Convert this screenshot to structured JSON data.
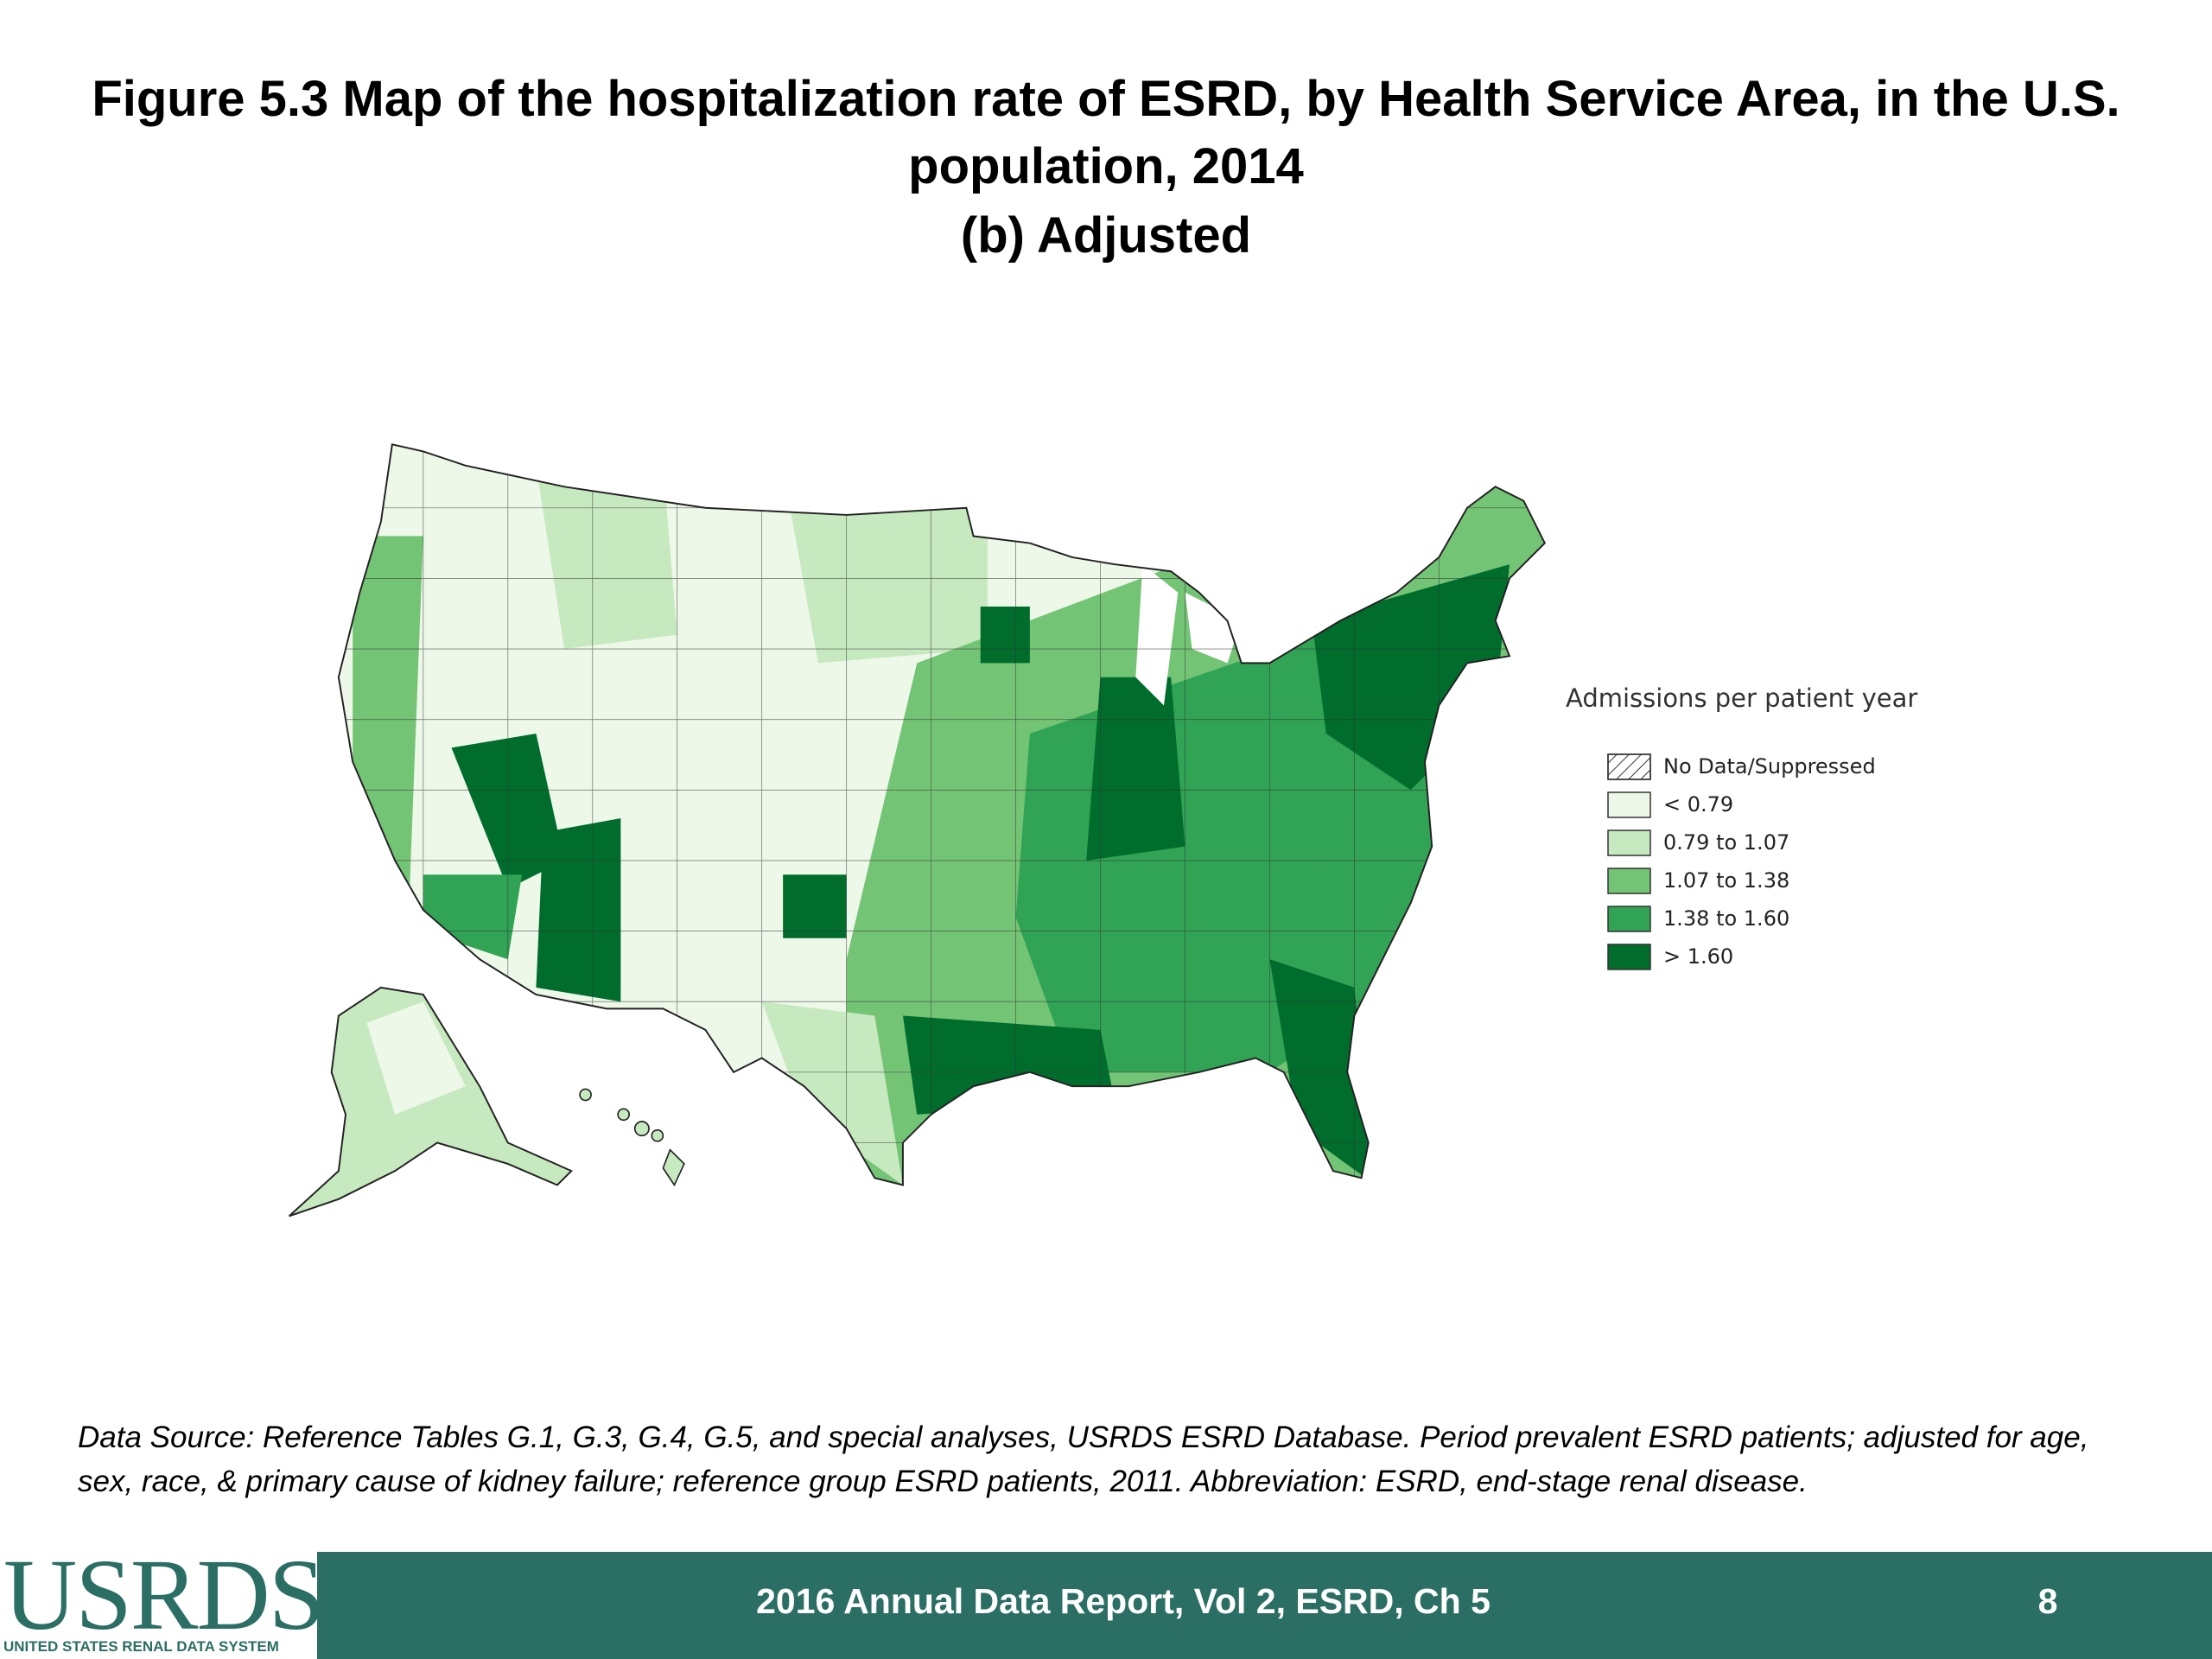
{
  "header": {
    "title": "Figure 5.3 Map of the hospitalization rate of ESRD, by Health Service Area, in the U.S. population, 2014",
    "subtitle": "(b) Adjusted"
  },
  "legend": {
    "title": "Admissions per patient year",
    "items": [
      {
        "label": "No Data/Suppressed",
        "color": "#ffffff",
        "hatched": true
      },
      {
        "label": "< 0.79",
        "color": "#edf8e9"
      },
      {
        "label": "0.79 to 1.07",
        "color": "#c7e9c0"
      },
      {
        "label": "1.07 to 1.38",
        "color": "#74c476"
      },
      {
        "label": "1.38 to 1.60",
        "color": "#31a354"
      },
      {
        "label": "> 1.60",
        "color": "#006d2c"
      }
    ]
  },
  "footnote": "Data Source: Reference Tables G.1, G.3, G.4, G.5, and special analyses, USRDS ESRD Database. Period prevalent ESRD patients; adjusted for age, sex, race, & primary cause of kidney failure; reference group ESRD patients, 2011. Abbreviation: ESRD, end-stage renal disease.",
  "footer": {
    "logo": "USRDS",
    "logo_subtitle": "UNITED STATES RENAL DATA SYSTEM",
    "text": "2016 Annual Data Report, Vol 2, ESRD, Ch 5",
    "page_number": "8"
  }
}
